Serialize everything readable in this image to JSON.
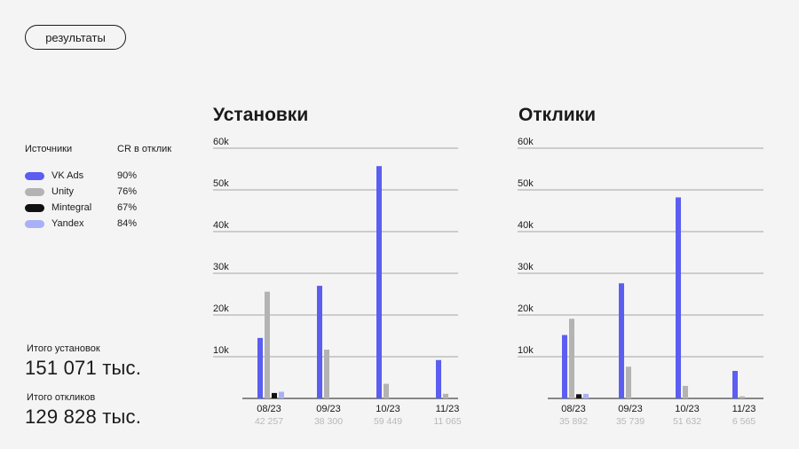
{
  "header": {
    "results_button": "результаты"
  },
  "legend": {
    "sources_header": "Источники",
    "cr_header": "CR в отклик",
    "items": [
      {
        "name": "VK Ads",
        "cr": "90%",
        "color": "#5b5ef0"
      },
      {
        "name": "Unity",
        "cr": "76%",
        "color": "#b3b3b3"
      },
      {
        "name": "Mintegral",
        "cr": "67%",
        "color": "#111111"
      },
      {
        "name": "Yandex",
        "cr": "84%",
        "color": "#a9b0f8"
      }
    ]
  },
  "totals": {
    "installs_label": "Итого установок",
    "installs_value": "151 071 тыс.",
    "responses_label": "Итого откликов",
    "responses_value": "129 828 тыс."
  },
  "chart_data": [
    {
      "type": "bar",
      "title": "Установки",
      "categories": [
        "08/23",
        "09/23",
        "10/23",
        "11/23"
      ],
      "totals": [
        "42 257",
        "38 300",
        "59 449",
        "11 065"
      ],
      "ylim": [
        0,
        60000
      ],
      "yticks": [
        10000,
        20000,
        30000,
        40000,
        50000,
        60000
      ],
      "ytick_labels": [
        "10k",
        "20k",
        "30k",
        "40k",
        "50k",
        "60k"
      ],
      "series": [
        {
          "name": "VK Ads",
          "color": "#5b5ef0",
          "values": [
            14500,
            27000,
            55700,
            9200
          ]
        },
        {
          "name": "Unity",
          "color": "#b3b3b3",
          "values": [
            25600,
            11700,
            3500,
            1100
          ]
        },
        {
          "name": "Mintegral",
          "color": "#111111",
          "values": [
            1300,
            0,
            0,
            0
          ]
        },
        {
          "name": "Yandex",
          "color": "#a9b0f8",
          "values": [
            1600,
            0,
            0,
            0
          ]
        }
      ]
    },
    {
      "type": "bar",
      "title": "Отклики",
      "categories": [
        "08/23",
        "09/23",
        "10/23",
        "11/23"
      ],
      "totals": [
        "35 892",
        "35 739",
        "51 632",
        "6 565"
      ],
      "ylim": [
        0,
        60000
      ],
      "yticks": [
        10000,
        20000,
        30000,
        40000,
        50000,
        60000
      ],
      "ytick_labels": [
        "10k",
        "20k",
        "30k",
        "40k",
        "50k",
        "60k"
      ],
      "series": [
        {
          "name": "VK Ads",
          "color": "#5b5ef0",
          "values": [
            15200,
            27600,
            48200,
            6600
          ]
        },
        {
          "name": "Unity",
          "color": "#b3b3b3",
          "values": [
            19100,
            7600,
            3000,
            500
          ]
        },
        {
          "name": "Mintegral",
          "color": "#111111",
          "values": [
            1000,
            0,
            0,
            0
          ]
        },
        {
          "name": "Yandex",
          "color": "#a9b0f8",
          "values": [
            1100,
            0,
            0,
            0
          ]
        }
      ]
    }
  ]
}
